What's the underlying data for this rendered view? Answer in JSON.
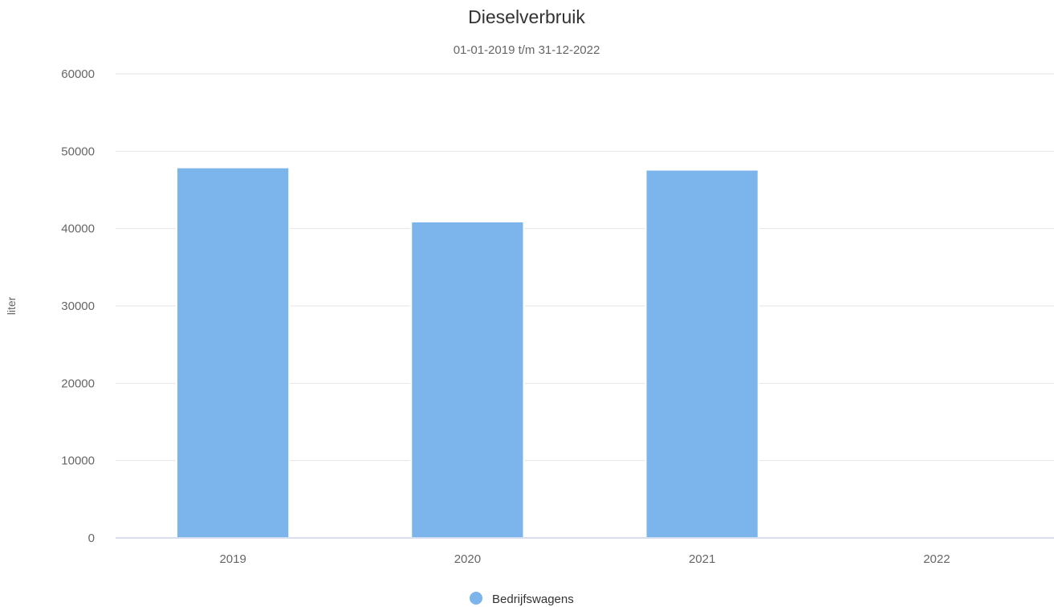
{
  "chart_data": {
    "type": "bar",
    "title": "Dieselverbruik",
    "subtitle": "01-01-2019 t/m 31-12-2022",
    "xlabel": "",
    "ylabel": "liter",
    "categories": [
      "2019",
      "2020",
      "2021",
      "2022"
    ],
    "series": [
      {
        "name": "Bedrijfswagens",
        "values": [
          47900,
          40900,
          47600,
          0
        ],
        "color": "#7cb5ec"
      }
    ],
    "ylim": [
      0,
      60000
    ],
    "yticks": [
      "0",
      "10000",
      "20000",
      "30000",
      "40000",
      "50000",
      "60000"
    ],
    "grid": true,
    "legend_position": "bottom-center"
  }
}
